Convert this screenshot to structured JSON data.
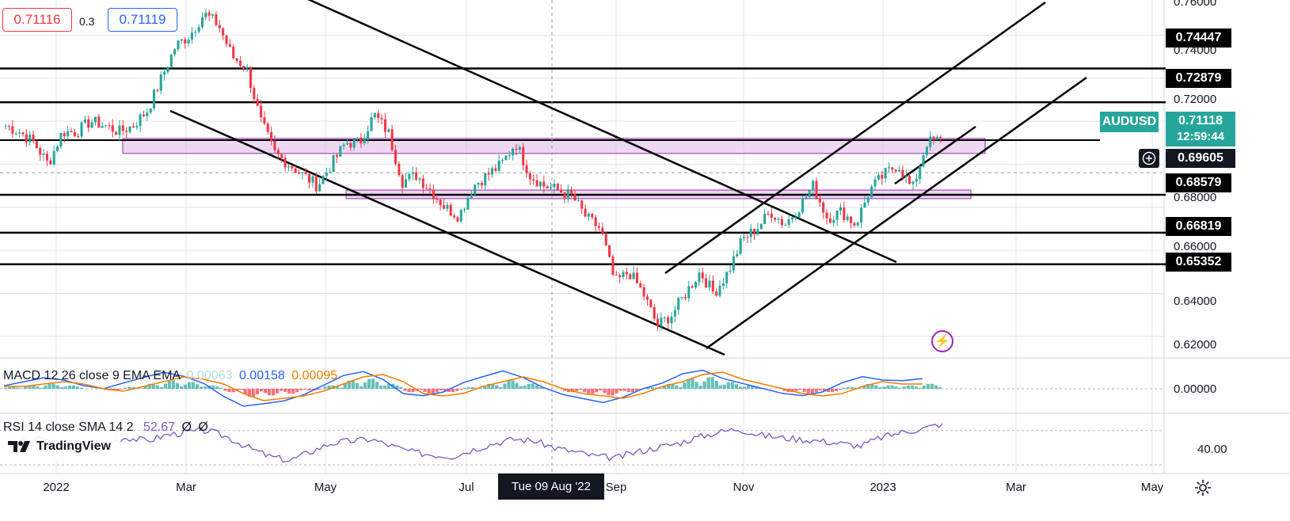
{
  "chart_data": {
    "type": "candlestick",
    "symbol": "AUDUSD",
    "price_axis": {
      "range": [
        0.61,
        0.78
      ],
      "ticks": [
        "0.62000",
        "0.64000",
        "0.66000",
        "0.68000",
        "0.70000",
        "0.72000",
        "0.74000",
        "0.76000"
      ]
    },
    "time_axis": {
      "labels": [
        "2022",
        "Mar",
        "May",
        "Jul",
        "Sep",
        "Nov",
        "2023",
        "Mar",
        "May"
      ],
      "crosshair_date": "Tue 09 Aug '22"
    },
    "close_path": [
      0.718,
      0.715,
      0.71,
      0.7,
      0.715,
      0.715,
      0.72,
      0.718,
      0.715,
      0.718,
      0.725,
      0.74,
      0.755,
      0.76,
      0.77,
      0.765,
      0.75,
      0.745,
      0.72,
      0.705,
      0.7,
      0.695,
      0.69,
      0.7,
      0.71,
      0.71,
      0.723,
      0.715,
      0.692,
      0.695,
      0.688,
      0.68,
      0.676,
      0.69,
      0.695,
      0.7,
      0.71,
      0.695,
      0.69,
      0.688,
      0.685,
      0.675,
      0.67,
      0.645,
      0.65,
      0.64,
      0.625,
      0.63,
      0.64,
      0.65,
      0.64,
      0.65,
      0.665,
      0.67,
      0.678,
      0.672,
      0.68,
      0.69,
      0.675,
      0.678,
      0.672,
      0.688,
      0.695,
      0.7,
      0.688,
      0.71,
      0.7112
    ],
    "series": [
      {
        "name": "AUDUSD",
        "last": "0.71118",
        "countdown": "12:59:44"
      }
    ],
    "quote": {
      "sell": "0.71116",
      "spread": "0.3",
      "buy": "0.71119"
    },
    "crosshair_price": "0.69605",
    "horizontal_levels": [
      {
        "label": "0.74447",
        "value": 0.74447
      },
      {
        "label": "0.72879",
        "value": 0.72879
      },
      {
        "label": "0.68579",
        "value": 0.68579
      },
      {
        "label": "0.66819",
        "value": 0.66819
      },
      {
        "label": "0.65352",
        "value": 0.65352
      }
    ],
    "current_price_line": 0.7112,
    "zones": [
      {
        "from": 0.705,
        "to": 0.712
      },
      {
        "from": 0.684,
        "to": 0.688
      }
    ],
    "macd": {
      "legend": "MACD 12 26 close 9 EMA EMA",
      "values": [
        "0.00063",
        "0.00158",
        "0.00095"
      ],
      "axis_tick": "0.00000",
      "histogram": [
        0.1,
        0.2,
        0.3,
        0.2,
        0.0,
        -0.1,
        0.1,
        0.3,
        0.5,
        0.4,
        0.2,
        -0.2,
        -0.5,
        -0.4,
        -0.3,
        -0.1,
        0.2,
        0.5,
        0.6,
        0.3,
        -0.2,
        -0.3,
        -0.2,
        0.1,
        0.3,
        0.5,
        0.3,
        0.0,
        -0.2,
        -0.3,
        -0.4,
        -0.2,
        0.1,
        0.3,
        0.6,
        0.7,
        0.4,
        0.2,
        0.0,
        -0.2,
        -0.3,
        -0.2,
        0.1,
        0.3,
        0.2,
        0.2,
        0.3
      ]
    },
    "rsi": {
      "legend": "RSI 14 close SMA 14 2",
      "values": [
        "52.67",
        "Ø",
        "Ø"
      ],
      "axis_tick": "40.00",
      "line": [
        55,
        58,
        60,
        52,
        48,
        56,
        62,
        58,
        65,
        68,
        70,
        62,
        50,
        40,
        35,
        45,
        55,
        58,
        60,
        52,
        45,
        42,
        40,
        48,
        55,
        60,
        58,
        50,
        45,
        40,
        38,
        45,
        50,
        55,
        62,
        68,
        72,
        65,
        62,
        60,
        58,
        55,
        52,
        62,
        68,
        72,
        78
      ]
    }
  },
  "branding": {
    "logo_text": "TradingView"
  },
  "colors": {
    "up": "#26a69a",
    "down": "#f23645",
    "zone": "#e1bee7",
    "zone_border": "#9c27b0",
    "macd": "#2962ff",
    "signal": "#f57c00",
    "rsi": "#7e57c2",
    "grid": "#e0e3eb"
  }
}
